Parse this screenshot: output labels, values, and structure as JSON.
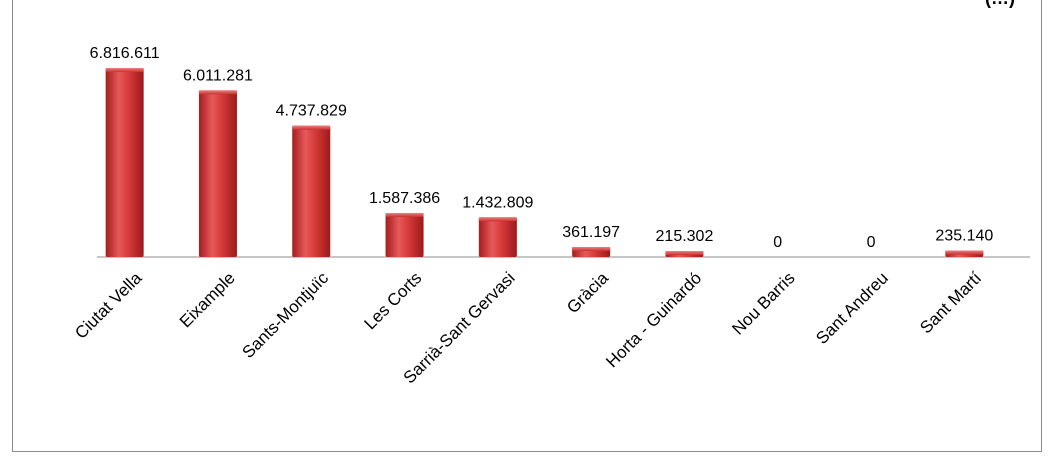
{
  "chart_data": {
    "type": "bar",
    "title_fragment": "(…)",
    "categories": [
      "Ciutat Vella",
      "Eixample",
      "Sants-Montjuïc",
      "Les Corts",
      "Sarrià-Sant Gervasi",
      "Gràcia",
      "Horta - Guinardó",
      "Nou Barris",
      "Sant Andreu",
      "Sant Martí"
    ],
    "values": [
      6816611,
      6011281,
      4737829,
      1587386,
      1432809,
      361197,
      215302,
      0,
      0,
      235140
    ],
    "value_labels": [
      "6.816.611",
      "6.011.281",
      "4.737.829",
      "1.587.386",
      "1.432.809",
      "361.197",
      "215.302",
      "0",
      "0",
      "235.140"
    ],
    "bar_color": "#d23a3a",
    "ylim": [
      0,
      6816611
    ],
    "grid": false,
    "legend": "none"
  }
}
